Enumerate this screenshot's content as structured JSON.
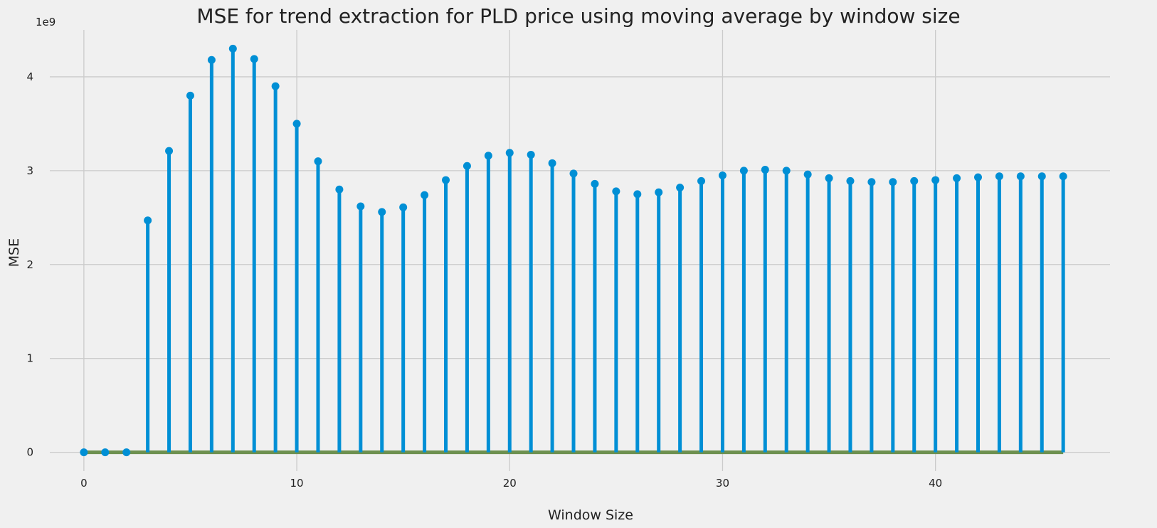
{
  "chart_data": {
    "type": "stem",
    "title": "MSE for trend extraction for PLD price using moving average by window size",
    "xlabel": "Window Size",
    "ylabel": "MSE",
    "y_offset_label": "1e9",
    "xlim": [
      -1.6,
      48.2
    ],
    "ylim": [
      -0.2,
      4.5
    ],
    "x_ticks": [
      0,
      10,
      20,
      30,
      40
    ],
    "y_ticks": [
      0,
      1,
      2,
      3,
      4
    ],
    "grid": true,
    "colors": {
      "stem": "#008fd5",
      "baseline": "#6d904f",
      "grid": "#cbcbcb",
      "background": "#f0f0f0"
    },
    "x": [
      0,
      1,
      2,
      3,
      4,
      5,
      6,
      7,
      8,
      9,
      10,
      11,
      12,
      13,
      14,
      15,
      16,
      17,
      18,
      19,
      20,
      21,
      22,
      23,
      24,
      25,
      26,
      27,
      28,
      29,
      30,
      31,
      32,
      33,
      34,
      35,
      36,
      37,
      38,
      39,
      40,
      41,
      42,
      43,
      44,
      45,
      46
    ],
    "values": [
      0.0,
      0.0,
      0.0,
      2.47,
      3.21,
      3.8,
      4.18,
      4.3,
      4.19,
      3.9,
      3.5,
      3.1,
      2.8,
      2.62,
      2.56,
      2.61,
      2.74,
      2.9,
      3.05,
      3.16,
      3.19,
      3.17,
      3.08,
      2.97,
      2.86,
      2.78,
      2.75,
      2.77,
      2.82,
      2.89,
      2.95,
      3.0,
      3.01,
      3.0,
      2.96,
      2.92,
      2.89,
      2.88,
      2.88,
      2.89,
      2.9,
      2.92,
      2.93,
      2.94,
      2.94,
      2.94,
      2.94
    ],
    "baseline_value": 0
  }
}
